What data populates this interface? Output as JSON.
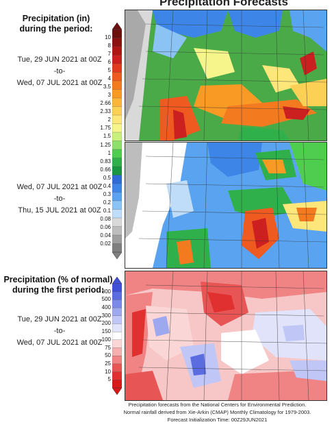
{
  "title": "Precipitation Forecasts",
  "precip_panel": {
    "heading_line1": "Precipitation (in)",
    "heading_line2": "during the period:",
    "period1": {
      "start": "Tue, 29 JUN 2021 at 00Z",
      "sep": "-to-",
      "end": "Wed, 07 JUL 2021 at 00Z"
    },
    "period2": {
      "start": "Wed, 07 JUL 2021 at 00Z",
      "sep": "-to-",
      "end": "Thu, 15 JUL 2021 at 00Z"
    },
    "scale_labels": [
      "10",
      "8",
      "7",
      "6",
      "5",
      "4",
      "3.5",
      "3",
      "2.66",
      "2.33",
      "2",
      "1.75",
      "1.5",
      "1.25",
      "1",
      "0.83",
      "0.66",
      "0.5",
      "0.4",
      "0.3",
      "0.2",
      "0.1",
      "0.08",
      "0.06",
      "0.04",
      "0.02"
    ],
    "scale_colors": [
      "#6b0f0f",
      "#8b1111",
      "#b01515",
      "#cc1f1f",
      "#e23a1f",
      "#ee5a1f",
      "#f47a20",
      "#f99a25",
      "#fbb63a",
      "#fcd055",
      "#fde77a",
      "#f5f58c",
      "#c9ef7d",
      "#8fe06a",
      "#4fcd4f",
      "#2fb04a",
      "#1a9641",
      "#2f6bd6",
      "#3d86e8",
      "#5aa3f0",
      "#8cc3f5",
      "#bfddf8",
      "#d9d9d9",
      "#bdbdbd",
      "#9e9e9e",
      "#7f7f7f"
    ]
  },
  "normal_panel": {
    "heading_line1": "Precipitation (% of normal)",
    "heading_line2": "during the first period:",
    "period": {
      "start": "Tue, 29 JUN 2021 at 00Z",
      "sep": "-to-",
      "end": "Wed, 07 JUL 2021 at 00Z"
    },
    "scale_labels": [
      "800",
      "500",
      "400",
      "300",
      "200",
      "150",
      "100",
      "75",
      "50",
      "25",
      "10",
      "5"
    ],
    "scale_colors": [
      "#3f4fd8",
      "#5b6be0",
      "#7b89e8",
      "#9ea8ef",
      "#c0c6f5",
      "#e0e3fa",
      "#ffffff",
      "#fbd6d6",
      "#f7aeae",
      "#f08383",
      "#e85555",
      "#e03030",
      "#d81818"
    ]
  },
  "footer": {
    "line1": "Precipitation forecasts from the National Centers for Environmental Prediction.",
    "line2": "Normal rainfall derived from Xie-Arkin (CMAP) Monthly Climatology for 1979-2003.",
    "line3": "Forecast Initialization Time: 00Z29JUN2021"
  }
}
